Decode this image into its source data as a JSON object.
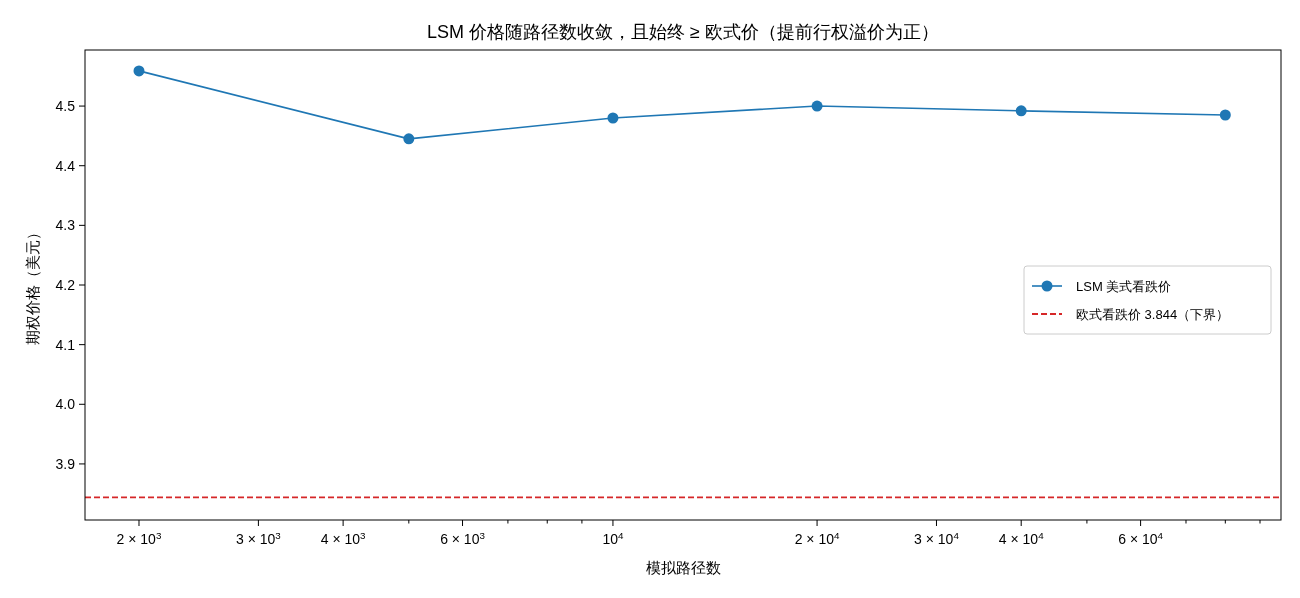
{
  "chart_data": {
    "type": "line",
    "title": "LSM 价格随路径数收敛，且始终 ≥ 欧式价（提前行权溢价为正）",
    "xlabel": "模拟路径数",
    "ylabel": "期权价格（美元）",
    "x": [
      2000,
      5000,
      10000,
      20000,
      40000,
      80000
    ],
    "series": [
      {
        "name": "LSM 美式看跌价",
        "color": "#1f77b4",
        "values": [
          4.559,
          4.445,
          4.48,
          4.5,
          4.492,
          4.485
        ]
      }
    ],
    "ref_lines": [
      {
        "axis": "y",
        "value": 3.844,
        "label": "欧式看跌价 3.844（下界）",
        "color": "#d62728",
        "line_style": "dashed"
      }
    ],
    "log": "x",
    "marker": "circle",
    "line_style": "solid",
    "legend": "right",
    "grid": false,
    "xlim": [
      1665,
      96650
    ],
    "ylim": [
      3.806,
      4.594
    ],
    "xticks": [
      {
        "value": 2000,
        "label": "2 × 10$^{3}$"
      },
      {
        "value": 3000,
        "label": "3 × 10$^{3}$"
      },
      {
        "value": 4000,
        "label": "4 × 10$^{3}$"
      },
      {
        "value": 5000,
        "label": null
      },
      {
        "value": 6000,
        "label": "6 × 10$^{3}$"
      },
      {
        "value": 7000,
        "label": null
      },
      {
        "value": 8000,
        "label": null
      },
      {
        "value": 9000,
        "label": null
      },
      {
        "value": 10000,
        "label": "10$^{4}$"
      },
      {
        "value": 20000,
        "label": "2 × 10$^{4}$"
      },
      {
        "value": 30000,
        "label": "3 × 10$^{4}$"
      },
      {
        "value": 40000,
        "label": "4 × 10$^{4}$"
      },
      {
        "value": 50000,
        "label": null
      },
      {
        "value": 60000,
        "label": "6 × 10$^{4}$"
      },
      {
        "value": 70000,
        "label": null
      },
      {
        "value": 80000,
        "label": null
      },
      {
        "value": 90000,
        "label": null
      }
    ],
    "yticks": [
      3.9,
      {
        "value": 4,
        "label": "4.0"
      },
      4.1,
      4.2,
      4.3,
      4.4,
      4.5
    ]
  }
}
